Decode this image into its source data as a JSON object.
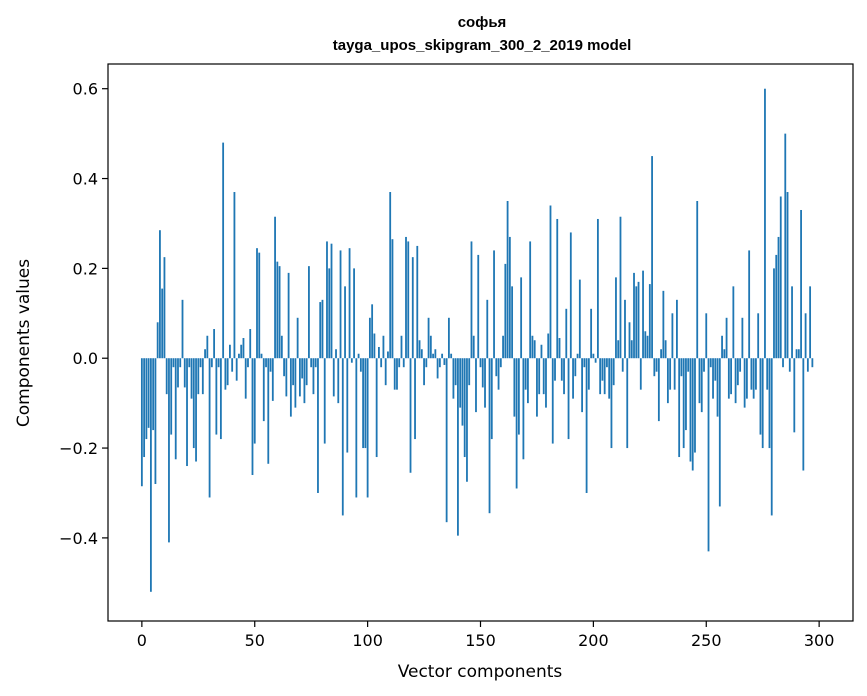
{
  "chart_data": {
    "type": "bar",
    "title": "софья",
    "subtitle": "tayga_upos_skipgram_300_2_2019 model",
    "xlabel": "Vector components",
    "ylabel": "Components values",
    "xlim": [
      -15,
      315
    ],
    "ylim": [
      -0.585,
      0.655
    ],
    "x_ticks": [
      0,
      50,
      100,
      150,
      200,
      250,
      300
    ],
    "y_ticks": [
      -0.4,
      -0.2,
      0.0,
      0.2,
      0.4,
      0.6
    ],
    "y_tick_labels": [
      "−0.4",
      "−0.2",
      "0.0",
      "0.2",
      "0.4",
      "0.6"
    ],
    "grid": false,
    "bar_color": "#1f77b4",
    "values": [
      -0.285,
      -0.22,
      -0.18,
      -0.155,
      -0.52,
      -0.16,
      -0.28,
      0.08,
      0.285,
      0.155,
      0.225,
      -0.08,
      -0.41,
      -0.17,
      -0.02,
      -0.225,
      -0.065,
      -0.02,
      0.13,
      -0.065,
      -0.24,
      -0.02,
      -0.09,
      -0.2,
      -0.23,
      -0.08,
      -0.02,
      -0.08,
      0.02,
      0.05,
      -0.31,
      -0.02,
      0.065,
      -0.17,
      -0.02,
      -0.18,
      0.48,
      -0.07,
      -0.06,
      0.03,
      -0.03,
      0.37,
      -0.05,
      0.01,
      0.03,
      0.045,
      -0.09,
      -0.02,
      0.065,
      -0.26,
      -0.19,
      0.245,
      0.235,
      0.01,
      -0.14,
      -0.02,
      -0.235,
      -0.03,
      -0.095,
      0.315,
      0.215,
      0.205,
      0.05,
      -0.04,
      -0.085,
      0.19,
      -0.13,
      -0.06,
      -0.11,
      0.09,
      -0.085,
      -0.045,
      -0.1,
      -0.06,
      0.205,
      -0.02,
      -0.08,
      -0.02,
      -0.3,
      0.125,
      0.13,
      -0.19,
      0.26,
      0.2,
      0.255,
      -0.085,
      0.02,
      -0.1,
      0.24,
      -0.35,
      0.16,
      -0.21,
      0.245,
      -0.01,
      0.2,
      -0.31,
      0.01,
      -0.03,
      -0.2,
      -0.2,
      -0.31,
      0.09,
      0.12,
      0.055,
      -0.22,
      0.025,
      -0.02,
      0.05,
      -0.06,
      0.015,
      0.37,
      0.265,
      -0.07,
      -0.07,
      -0.02,
      0.05,
      -0.02,
      0.27,
      0.26,
      -0.255,
      0.225,
      -0.18,
      0.25,
      0.04,
      0.02,
      -0.06,
      -0.02,
      0.09,
      0.05,
      0.01,
      0.02,
      -0.045,
      -0.02,
      0.01,
      -0.015,
      -0.365,
      0.09,
      0.01,
      -0.09,
      -0.06,
      -0.395,
      -0.11,
      -0.15,
      -0.22,
      -0.275,
      -0.06,
      0.26,
      0.05,
      -0.12,
      0.23,
      -0.02,
      -0.065,
      -0.11,
      0.13,
      -0.345,
      -0.18,
      0.24,
      -0.04,
      -0.07,
      -0.02,
      0.05,
      0.21,
      0.35,
      0.27,
      0.16,
      -0.13,
      -0.29,
      -0.17,
      0.18,
      -0.225,
      -0.07,
      -0.1,
      0.26,
      0.05,
      0.04,
      -0.13,
      -0.08,
      0.03,
      -0.08,
      -0.11,
      0.055,
      0.34,
      -0.19,
      -0.05,
      0.31,
      0.045,
      -0.05,
      -0.08,
      0.11,
      -0.18,
      0.28,
      -0.09,
      -0.04,
      0.01,
      0.175,
      -0.12,
      -0.02,
      -0.3,
      -0.07,
      0.11,
      0.01,
      -0.01,
      0.31,
      -0.08,
      -0.05,
      -0.08,
      -0.02,
      -0.09,
      -0.2,
      -0.06,
      0.18,
      0.04,
      0.315,
      -0.03,
      0.13,
      -0.2,
      0.08,
      0.04,
      0.19,
      0.16,
      0.17,
      -0.07,
      0.195,
      0.06,
      0.05,
      0.165,
      0.45,
      -0.04,
      -0.03,
      -0.14,
      0.02,
      0.15,
      0.04,
      -0.1,
      -0.07,
      0.1,
      -0.07,
      0.13,
      -0.22,
      -0.04,
      -0.2,
      -0.16,
      -0.03,
      -0.23,
      -0.25,
      -0.21,
      0.35,
      -0.1,
      -0.12,
      -0.03,
      0.1,
      -0.43,
      -0.02,
      -0.09,
      -0.05,
      -0.13,
      -0.33,
      0.05,
      0.02,
      0.09,
      -0.09,
      -0.08,
      0.16,
      -0.1,
      -0.06,
      -0.03,
      0.09,
      -0.11,
      -0.09,
      0.24,
      -0.07,
      -0.09,
      -0.07,
      0.1,
      -0.17,
      -0.2,
      0.6,
      -0.07,
      -0.2,
      -0.35,
      0.2,
      0.23,
      0.27,
      0.36,
      -0.02,
      0.5,
      0.37,
      -0.03,
      0.16,
      -0.165,
      0.02,
      0.02,
      0.33,
      -0.25,
      0.1,
      -0.03,
      0.16,
      -0.02
    ]
  }
}
